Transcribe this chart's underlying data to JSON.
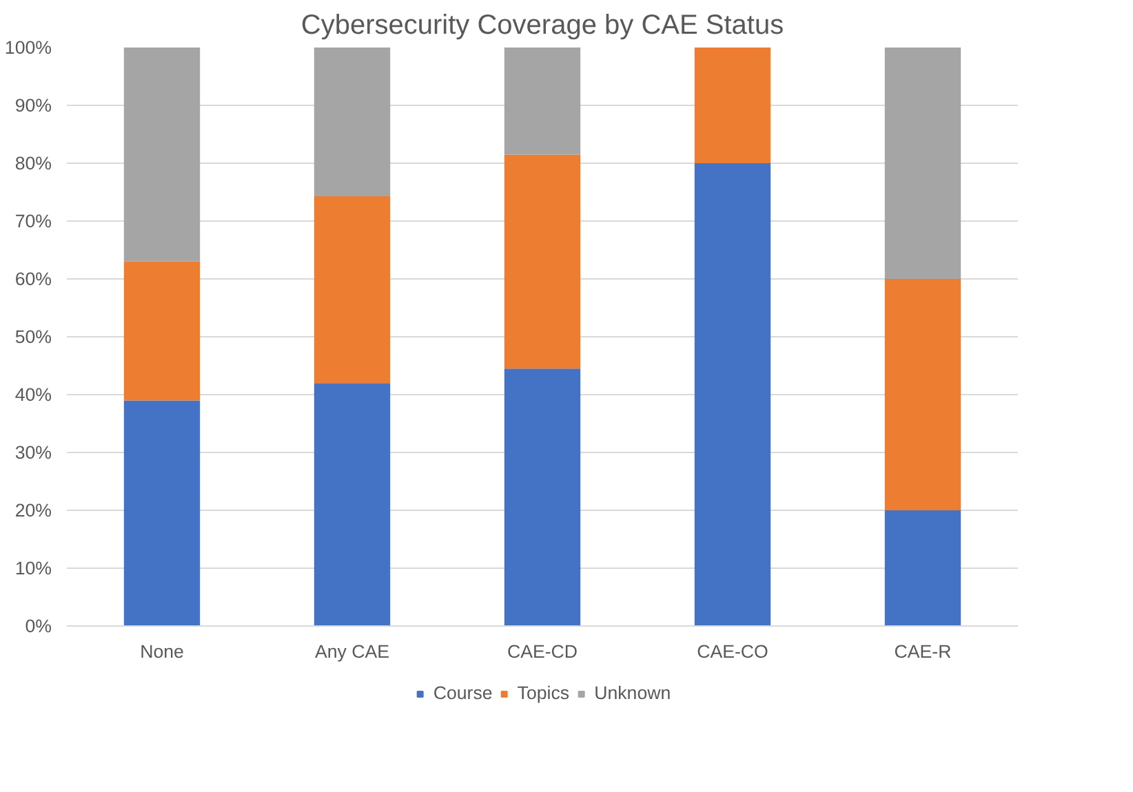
{
  "chart_data": {
    "type": "bar",
    "title": "Cybersecurity Coverage by CAE Status",
    "stacked": true,
    "categories": [
      "None",
      "Any CAE",
      "CAE-CD",
      "CAE-CO",
      "CAE-R"
    ],
    "series": [
      {
        "name": "Course",
        "color": "#4472c4",
        "values": [
          39,
          42,
          44.5,
          80,
          20
        ]
      },
      {
        "name": "Topics",
        "color": "#ed7d31",
        "values": [
          24,
          32.3,
          37,
          20,
          40
        ]
      },
      {
        "name": "Unknown",
        "color": "#a5a5a5",
        "values": [
          37,
          25.7,
          18.5,
          0,
          40
        ]
      }
    ],
    "ylim": [
      0,
      100
    ],
    "yticks": [
      {
        "value": 0,
        "label": "0%"
      },
      {
        "value": 10,
        "label": "10%"
      },
      {
        "value": 20,
        "label": "20%"
      },
      {
        "value": 30,
        "label": "30%"
      },
      {
        "value": 40,
        "label": "40%"
      },
      {
        "value": 50,
        "label": "50%"
      },
      {
        "value": 60,
        "label": "60%"
      },
      {
        "value": 70,
        "label": "70%"
      },
      {
        "value": 80,
        "label": "80%"
      },
      {
        "value": 90,
        "label": "90%"
      },
      {
        "value": 100,
        "label": "100%"
      }
    ],
    "grid": "y",
    "legend": "bottom"
  }
}
